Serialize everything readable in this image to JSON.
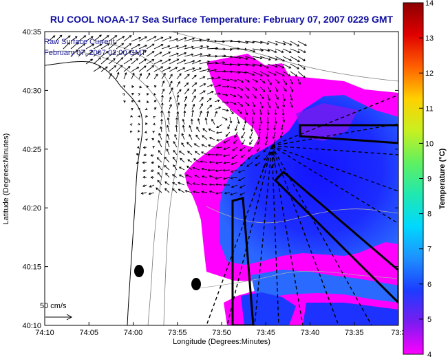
{
  "chart_data": {
    "type": "heatmap",
    "title": "RU COOL  NOAA-17  Sea Surface Temperature:  February 07, 2007 0229 GMT",
    "xlabel": "Longitude (Degrees:Minutes)",
    "ylabel": "Latitude (Degrees:Minutes)",
    "x_ticks": [
      "74:10",
      "74:05",
      "74:00",
      "73:55",
      "73:50",
      "73:45",
      "73:40",
      "73:35",
      "73:3"
    ],
    "y_ticks": [
      "40:35",
      "40:30",
      "40:25",
      "40:20",
      "40:15",
      "40:10"
    ],
    "colorbar": {
      "label": "Temperature (°C)",
      "ticks": [
        "14",
        "13",
        "12",
        "11",
        "10",
        "9",
        "8",
        "7",
        "6",
        "5",
        "4"
      ],
      "range": [
        4,
        14
      ],
      "colors": [
        "#ff00ff",
        "#7a1cf0",
        "#1c3cff",
        "#1e90ff",
        "#00d8ff",
        "#20e8b0",
        "#60f060",
        "#c8f020",
        "#ffd000",
        "#ff6000",
        "#e00000",
        "#8c0000"
      ]
    },
    "annotations": {
      "current_label": "Raw Surface Current",
      "current_time": "February 07, 2007 02:00 GMT",
      "scale_label": "50 cm/s"
    },
    "grid": false
  },
  "colors": {
    "title": "#1010a0",
    "land": "#ffffff",
    "warm_water": "#ff00ff",
    "cold_water": "#1c3cff",
    "coast": "#000000"
  }
}
